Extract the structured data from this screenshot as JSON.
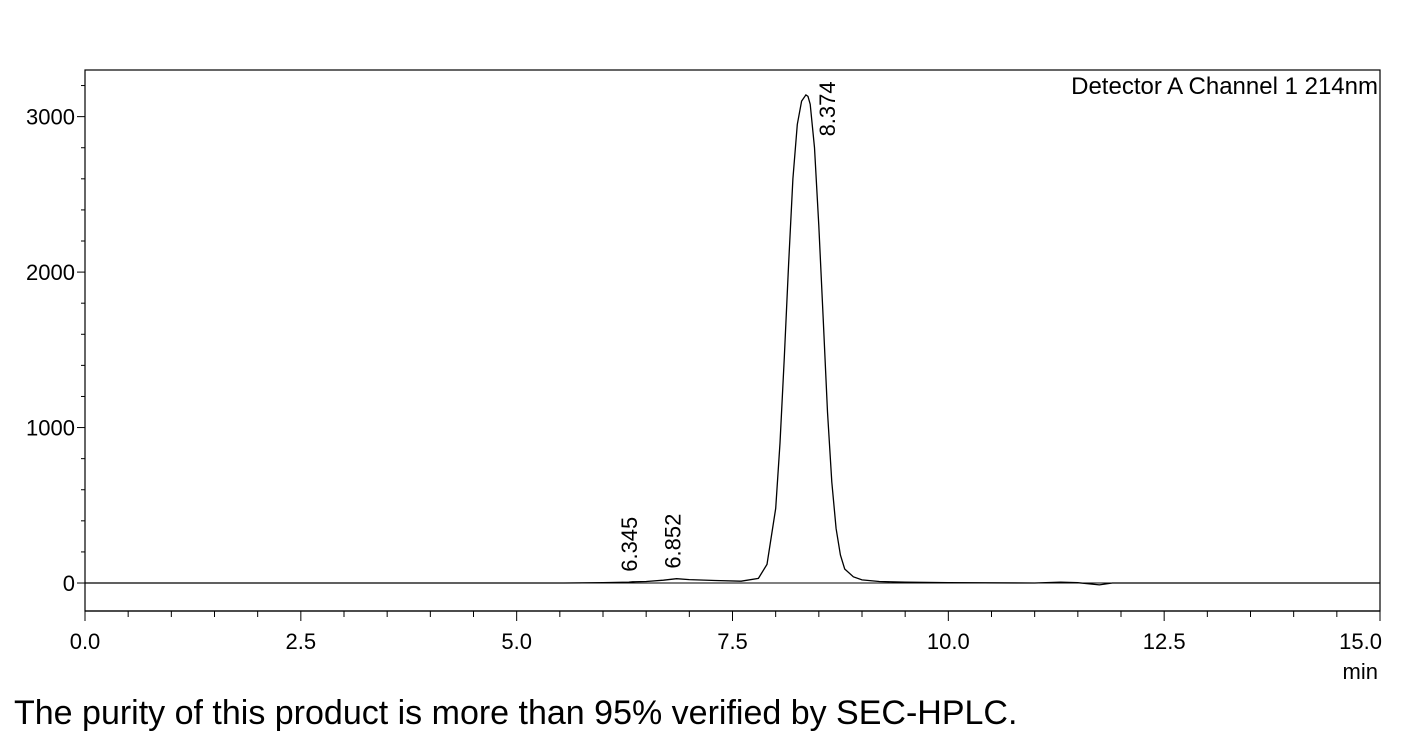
{
  "caption": "The purity of this product is more than 95% verified by SEC-HPLC.",
  "chart_data": {
    "type": "line",
    "title": "",
    "detector_label": "Detector A Channel 1 214nm",
    "xlabel": "min",
    "ylabel": "",
    "xlim": [
      0.0,
      15.0
    ],
    "ylim": [
      -180,
      3300
    ],
    "x_ticks": [
      "0.0",
      "2.5",
      "5.0",
      "7.5",
      "10.0",
      "12.5",
      "15.0"
    ],
    "y_ticks": [
      "0",
      "1000",
      "2000",
      "3000"
    ],
    "baseline": 0,
    "series": [
      {
        "x": [
          0.0,
          5.55,
          6.0,
          6.3,
          6.345,
          6.5,
          6.7,
          6.852,
          7.0,
          7.3,
          7.6,
          7.8,
          7.9,
          8.0,
          8.05,
          8.1,
          8.15,
          8.2,
          8.25,
          8.3,
          8.35,
          8.374,
          8.4,
          8.45,
          8.5,
          8.55,
          8.6,
          8.65,
          8.7,
          8.75,
          8.8,
          8.9,
          9.0,
          9.2,
          9.5,
          10.0,
          11.0,
          11.3,
          11.5,
          11.75,
          11.9,
          12.0,
          15.0
        ],
        "y": [
          0,
          0,
          2,
          6,
          8,
          10,
          18,
          28,
          22,
          16,
          12,
          30,
          120,
          480,
          900,
          1450,
          2050,
          2600,
          2950,
          3100,
          3140,
          3130,
          3080,
          2800,
          2300,
          1700,
          1100,
          650,
          350,
          180,
          90,
          40,
          20,
          10,
          5,
          2,
          0,
          6,
          2,
          -12,
          0,
          0,
          0
        ]
      }
    ],
    "peaks": [
      {
        "time": "6.345",
        "x": 6.345,
        "y": 8
      },
      {
        "time": "6.852",
        "x": 6.852,
        "y": 28
      },
      {
        "time": "8.374",
        "x": 8.374,
        "y": 3130
      }
    ]
  }
}
